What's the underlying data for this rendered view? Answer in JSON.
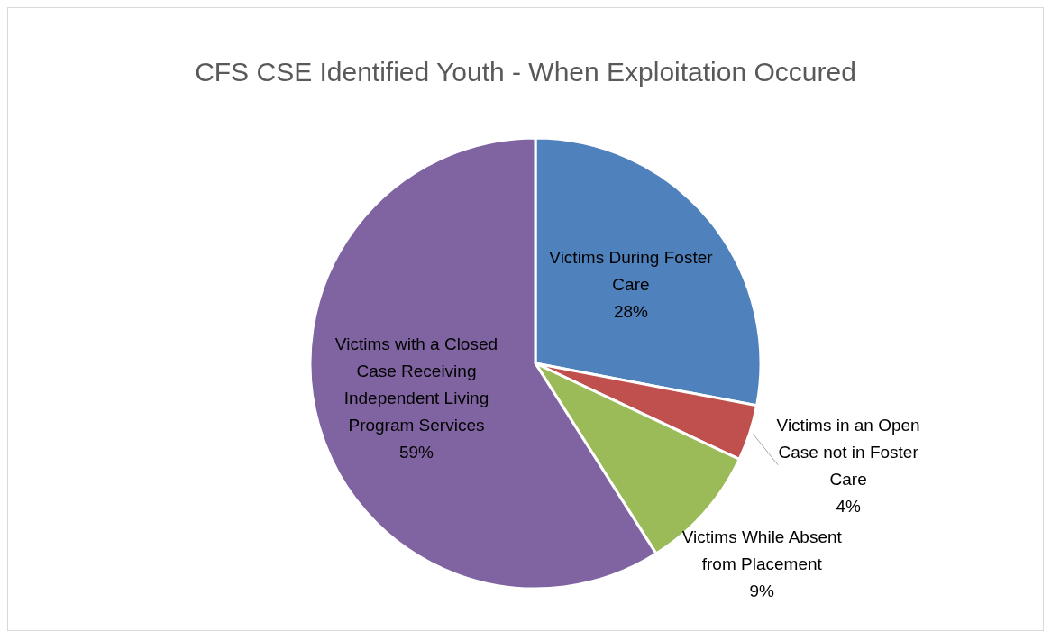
{
  "chart_data": {
    "type": "pie",
    "title": "CFS CSE Identified Youth - When Exploitation Occured",
    "categories": [
      "Victims During Foster Care",
      "Victims in an Open Case not in Foster Care",
      "Victims While Absent from Placement",
      "Victims with a Closed Case Receiving Independent Living Program Services"
    ],
    "values": [
      28,
      4,
      9,
      59
    ],
    "value_labels": [
      "28%",
      "4%",
      "9%",
      "59%"
    ],
    "colors": [
      "#4f81bd",
      "#c0504d",
      "#9bbb59",
      "#8064a2"
    ]
  }
}
